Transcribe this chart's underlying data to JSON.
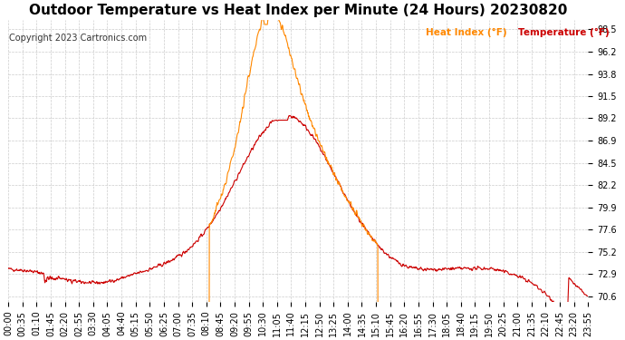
{
  "title": "Outdoor Temperature vs Heat Index per Minute (24 Hours) 20230820",
  "copyright": "Copyright 2023 Cartronics.com",
  "legend_heat": "Heat Index (°F)",
  "legend_temp": "Temperature (°F)",
  "ylabel_ticks": [
    70.6,
    72.9,
    75.2,
    77.6,
    79.9,
    82.2,
    84.5,
    86.9,
    89.2,
    91.5,
    93.8,
    96.2,
    98.5
  ],
  "ymin": 70.0,
  "ymax": 99.5,
  "temp_color": "#cc0000",
  "heat_color": "#ff8800",
  "bg_color": "#ffffff",
  "grid_color": "#cccccc",
  "title_fontsize": 11,
  "tick_fontsize": 7,
  "xtick_labels": [
    "00:00",
    "00:35",
    "01:10",
    "01:45",
    "02:20",
    "02:55",
    "03:30",
    "04:05",
    "04:40",
    "05:15",
    "05:50",
    "06:25",
    "07:00",
    "07:35",
    "08:10",
    "08:45",
    "09:20",
    "09:55",
    "10:30",
    "11:05",
    "11:40",
    "12:15",
    "12:50",
    "13:25",
    "14:00",
    "14:35",
    "15:10",
    "15:45",
    "16:20",
    "16:55",
    "17:30",
    "18:05",
    "18:40",
    "19:15",
    "19:50",
    "20:25",
    "21:00",
    "21:35",
    "22:10",
    "22:45",
    "23:20",
    "23:55"
  ]
}
